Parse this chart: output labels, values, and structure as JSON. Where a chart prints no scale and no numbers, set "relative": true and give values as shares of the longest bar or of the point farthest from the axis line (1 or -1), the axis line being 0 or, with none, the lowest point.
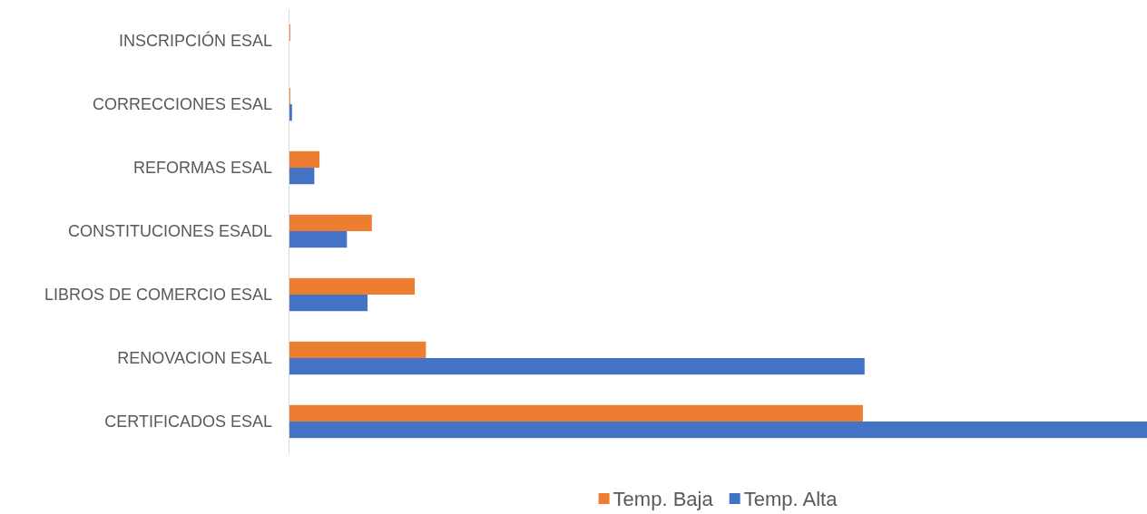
{
  "chart_data": {
    "type": "bar",
    "orientation": "horizontal",
    "relative": true,
    "categories": [
      "INSCRIPCIÓN ESAL",
      "CORRECCIONES ESAL",
      "REFORMAS ESAL",
      "CONSTITUCIONES ESADL",
      "LIBROS DE COMERCIO ESAL",
      "RENOVACION ESAL",
      "CERTIFICADOS ESAL"
    ],
    "series": [
      {
        "name": "Temp. Baja",
        "color": "#ed7d31",
        "values": [
          0.002,
          0.002,
          0.036,
          0.097,
          0.147,
          0.16,
          0.669
        ]
      },
      {
        "name": "Temp. Alta",
        "color": "#4472c4",
        "values": [
          0,
          0.004,
          0.03,
          0.068,
          0.092,
          0.671,
          1
        ]
      }
    ],
    "legend": "bottom"
  }
}
